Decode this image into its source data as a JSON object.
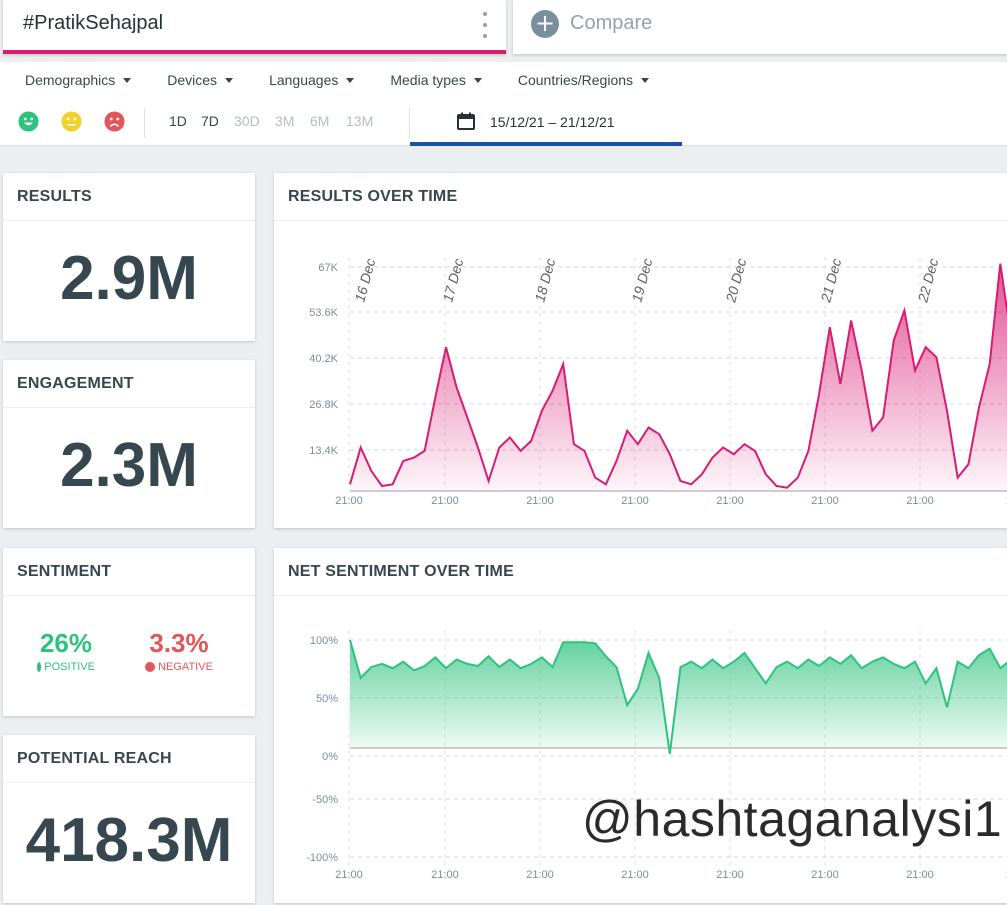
{
  "search": {
    "query": "#PratikSehajpal"
  },
  "compare": {
    "label": "Compare"
  },
  "filters": [
    "Demographics",
    "Devices",
    "Languages",
    "Media types",
    "Countries/Regions"
  ],
  "ranges": [
    "1D",
    "7D",
    "30D",
    "3M",
    "6M",
    "13M"
  ],
  "date_range": "15/12/21 – 21/12/21",
  "colors": {
    "accent": "#d81b73",
    "positive": "#2ec27e",
    "neutral": "#f2d12e",
    "negative": "#e0575b",
    "date_underline": "#1e4fa8"
  },
  "results": {
    "title": "RESULTS",
    "value": "2.9M"
  },
  "engagement": {
    "title": "ENGAGEMENT",
    "value": "2.3M"
  },
  "sentiment": {
    "title": "SENTIMENT",
    "positive_value": "26%",
    "positive_label": "POSITIVE",
    "negative_value": "3.3%",
    "negative_label": "NEGATIVE"
  },
  "reach": {
    "title": "POTENTIAL REACH",
    "value": "418.3M"
  },
  "results_chart": {
    "title": "RESULTS OVER TIME",
    "y_ticks": [
      "67K",
      "53.6K",
      "40.2K",
      "26.8K",
      "13.4K"
    ],
    "x_ticks": [
      "21:00",
      "21:00",
      "21:00",
      "21:00",
      "21:00",
      "21:00",
      "21:00",
      "2"
    ],
    "day_labels": [
      "16 Dec",
      "17 Dec",
      "18 Dec",
      "19 Dec",
      "20 Dec",
      "21 Dec",
      "22 Dec"
    ]
  },
  "sentiment_chart": {
    "title": "NET SENTIMENT OVER TIME",
    "y_ticks": [
      "100%",
      "50%",
      "0%",
      "-50%",
      "-100%"
    ],
    "x_ticks": [
      "21:00",
      "21:00",
      "21:00",
      "21:00",
      "21:00",
      "21:00",
      "21:00",
      "2"
    ]
  },
  "chart_data": [
    {
      "type": "area",
      "title": "RESULTS OVER TIME",
      "x_tick_labels": [
        "21:00",
        "21:00",
        "21:00",
        "21:00",
        "21:00",
        "21:00",
        "21:00",
        "2"
      ],
      "y_tick_labels": [
        "67K",
        "53.6K",
        "40.2K",
        "26.8K",
        "13.4K"
      ],
      "day_labels": [
        "16 Dec",
        "17 Dec",
        "18 Dec",
        "19 Dec",
        "20 Dec",
        "21 Dec",
        "22 Dec"
      ],
      "ylim": [
        0,
        67000
      ],
      "series": [
        {
          "color": "#d81b73",
          "values": [
            2000,
            13000,
            6000,
            1500,
            2000,
            9000,
            10000,
            12000,
            28000,
            43000,
            31000,
            22000,
            13000,
            3000,
            13000,
            16000,
            12000,
            15000,
            24000,
            30000,
            38000,
            14000,
            12000,
            4000,
            2000,
            9000,
            18000,
            14000,
            19000,
            17000,
            11000,
            3000,
            2000,
            5000,
            10000,
            13000,
            11000,
            14000,
            12000,
            5000,
            1500,
            1000,
            4000,
            12000,
            29000,
            49000,
            32000,
            51000,
            36000,
            18000,
            22000,
            45000,
            54000,
            36000,
            43000,
            40000,
            24000,
            4000,
            8000,
            25000,
            38000,
            68000,
            46000
          ]
        }
      ]
    },
    {
      "type": "area",
      "title": "NET SENTIMENT OVER TIME",
      "x_tick_labels": [
        "21:00",
        "21:00",
        "21:00",
        "21:00",
        "21:00",
        "21:00",
        "21:00",
        "2"
      ],
      "y_tick_labels": [
        "100%",
        "50%",
        "0%",
        "-50%",
        "-100%"
      ],
      "ylim": [
        -100,
        100
      ],
      "series": [
        {
          "color": "#2ec27e",
          "values": [
            100,
            65,
            75,
            78,
            74,
            80,
            72,
            76,
            84,
            74,
            82,
            78,
            76,
            85,
            75,
            82,
            74,
            78,
            84,
            75,
            98,
            98,
            98,
            97,
            85,
            75,
            40,
            55,
            88,
            65,
            -5,
            75,
            80,
            74,
            82,
            74,
            80,
            88,
            74,
            60,
            75,
            80,
            74,
            82,
            76,
            84,
            78,
            86,
            74,
            80,
            84,
            78,
            74,
            80,
            60,
            74,
            38,
            80,
            74,
            86,
            92,
            74,
            82
          ]
        }
      ]
    }
  ]
}
